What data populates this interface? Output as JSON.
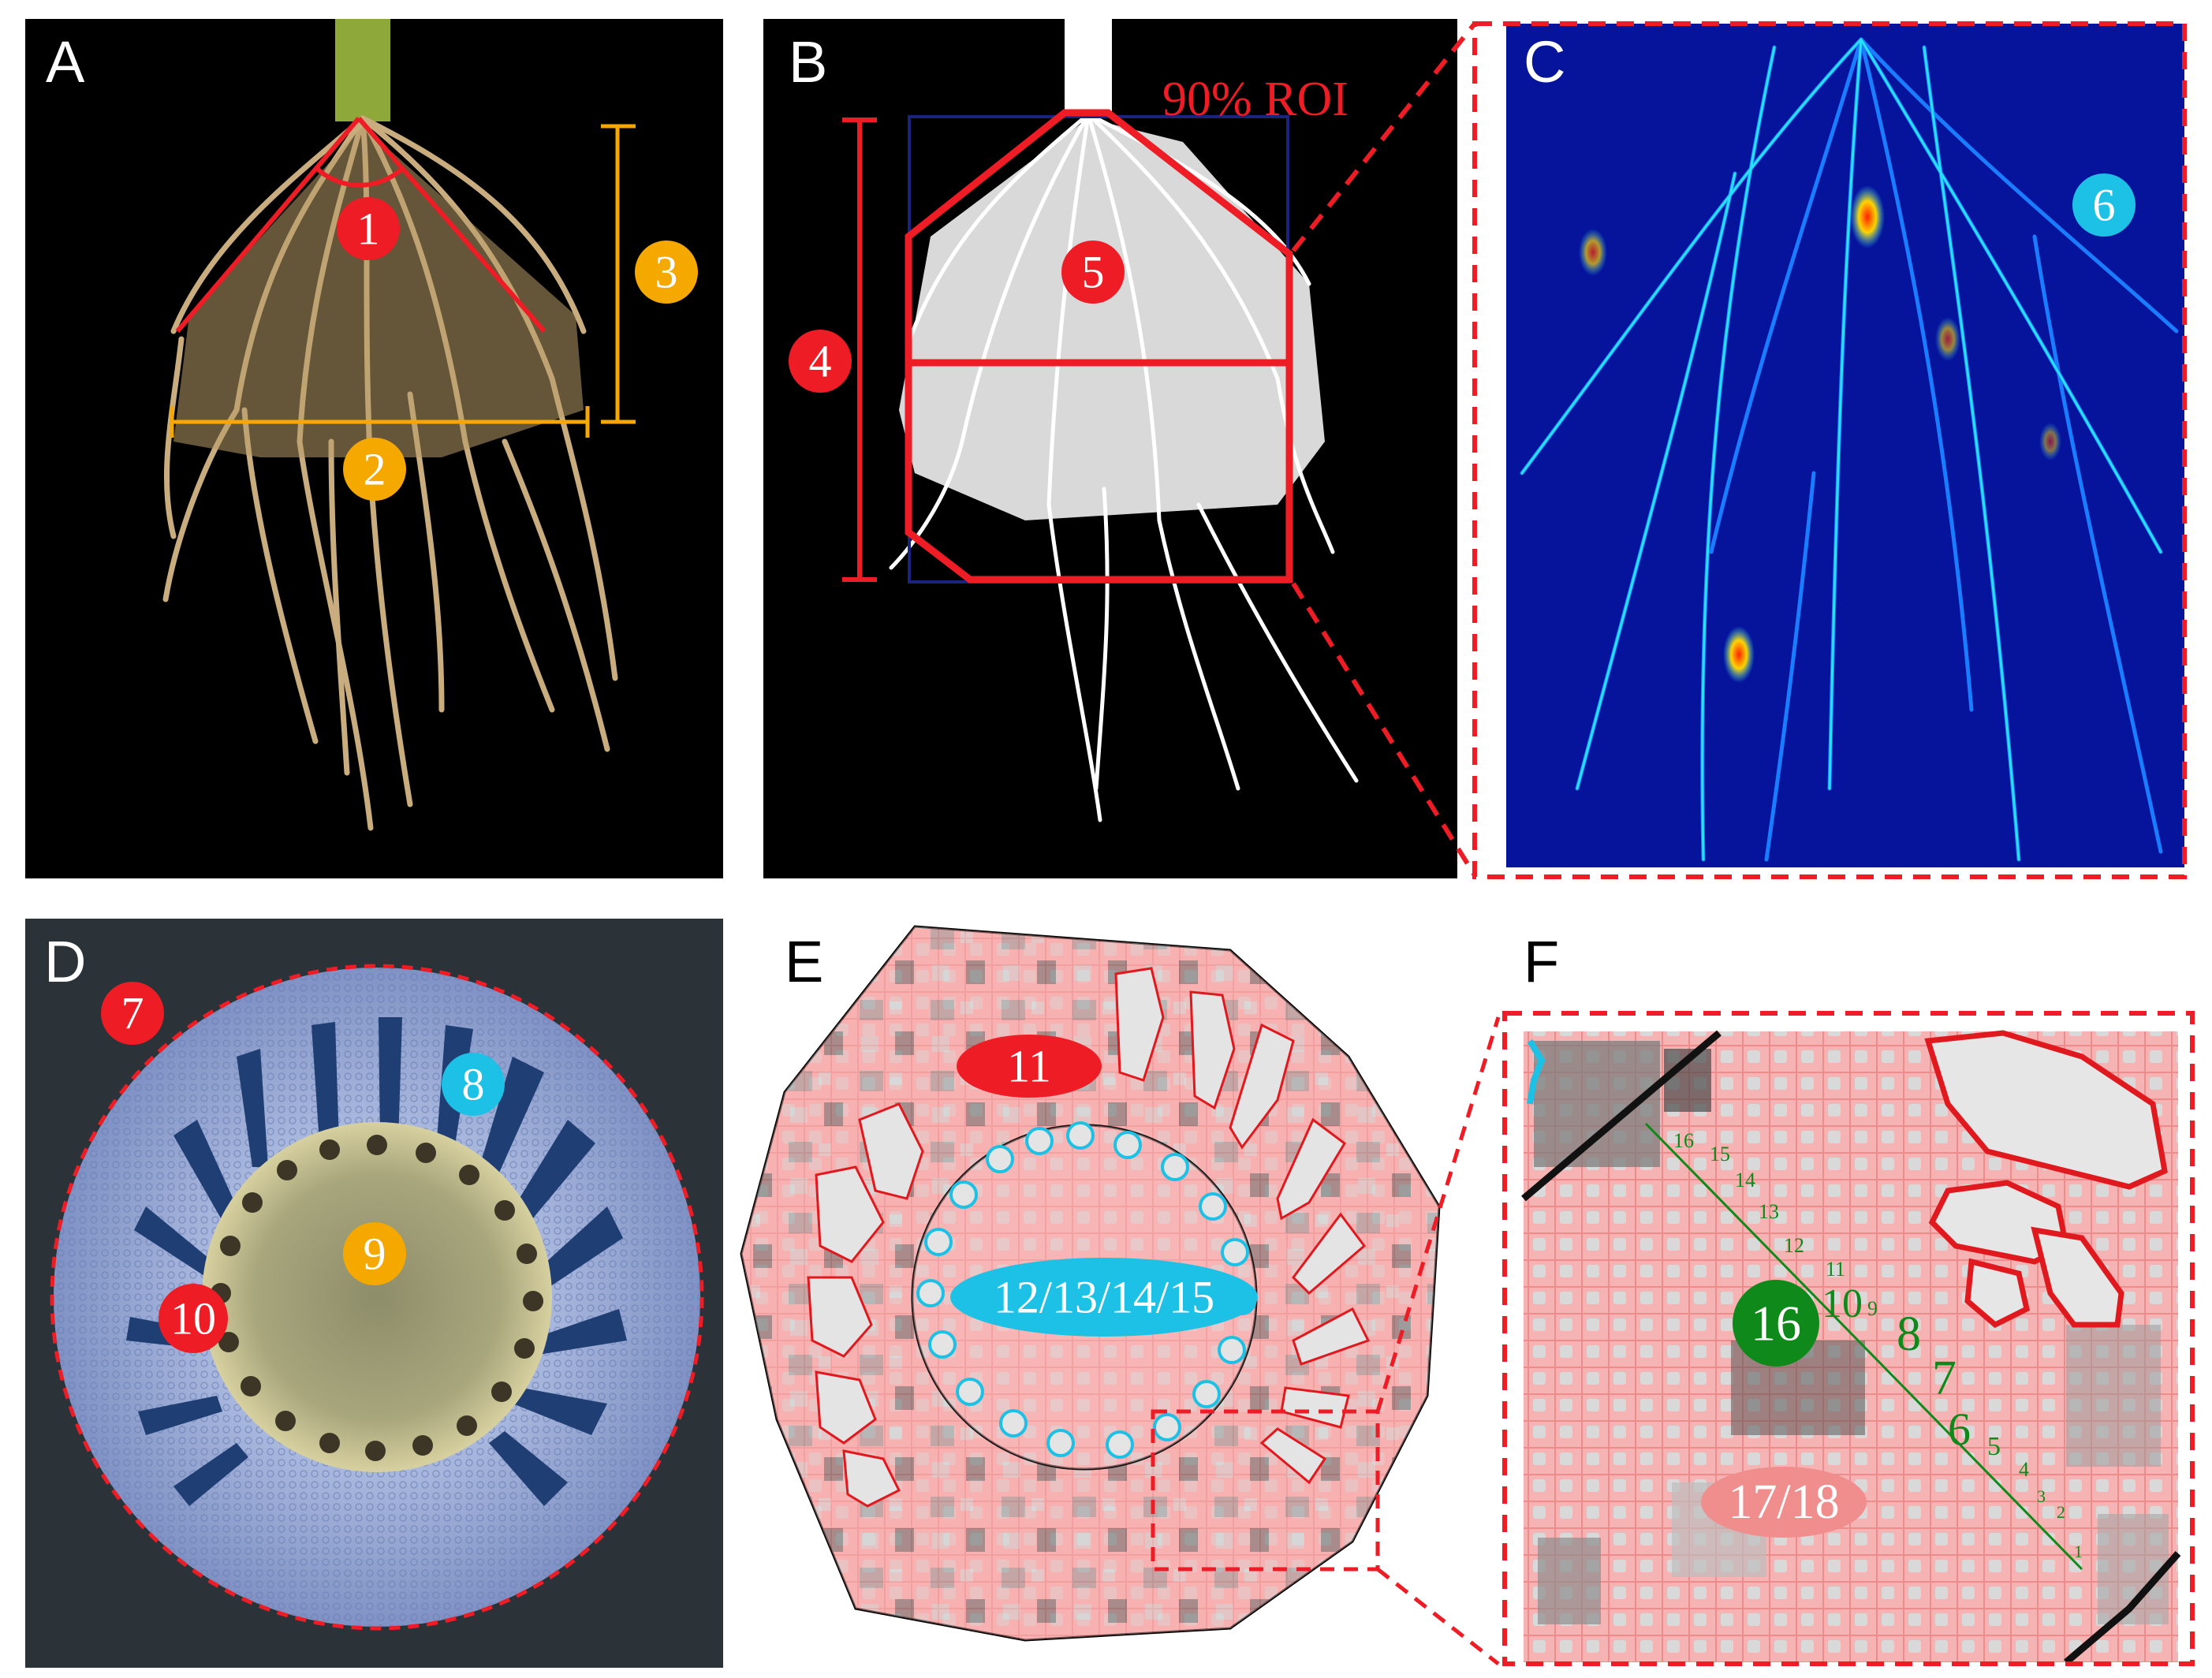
{
  "panels": {
    "A": {
      "letter": "A",
      "badges": [
        "1",
        "2",
        "3"
      ]
    },
    "B": {
      "letter": "B",
      "roi_label": "90% ROI",
      "badges": [
        "4",
        "5"
      ]
    },
    "C": {
      "letter": "C",
      "badges": [
        "6"
      ]
    },
    "D": {
      "letter": "D",
      "badges": [
        "7",
        "8",
        "9",
        "10"
      ]
    },
    "E": {
      "letter": "E",
      "badges": [
        "11",
        "12/13/14/15"
      ]
    },
    "F": {
      "letter": "F",
      "badges": [
        "16",
        "17/18"
      ],
      "ruler_ticks": [
        "1",
        "2",
        "3",
        "4",
        "5",
        "6",
        "7",
        "8",
        "9",
        "10",
        "11",
        "12",
        "13",
        "14",
        "15",
        "16"
      ]
    }
  },
  "colors": {
    "red": "#ee1c25",
    "orange": "#f5a800",
    "cyan": "#1ec1e6",
    "green": "#0f8a1a",
    "pink": "#f4a3a3",
    "heatmap_bg": "#06149c"
  }
}
